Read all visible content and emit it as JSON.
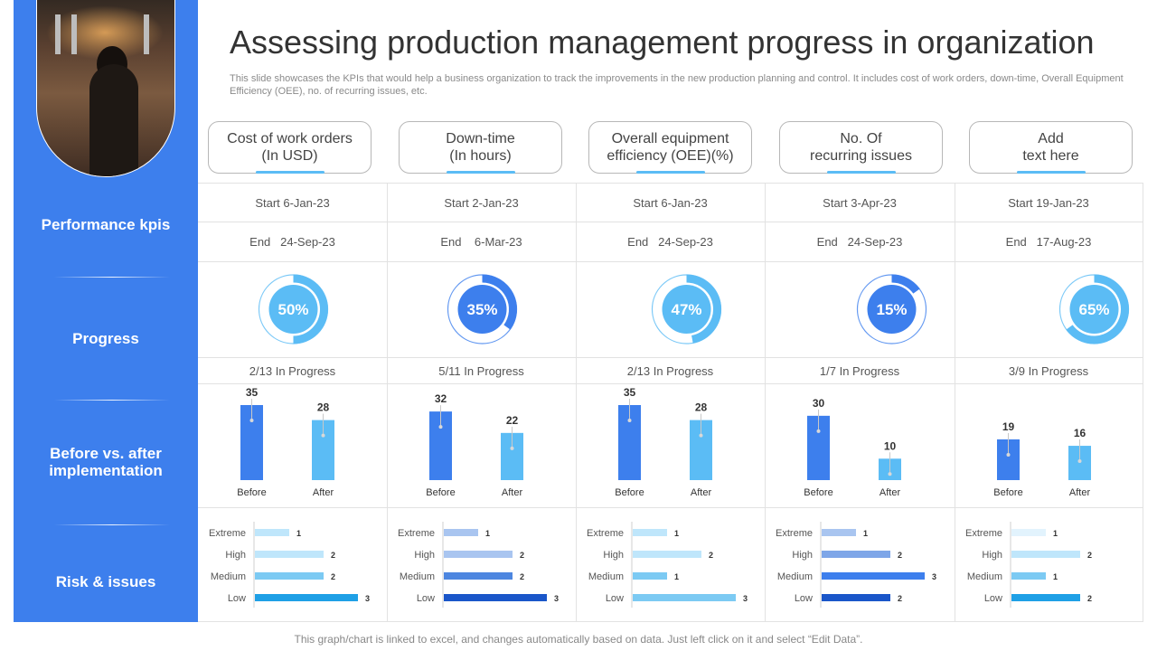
{
  "title": "Assessing production management progress in organization",
  "subtitle": "This slide showcases the KPIs that would help a business organization to track the improvements in the new production planning and control. It includes cost of work orders, down-time, Overall Equipment Efficiency (OEE), no. of recurring issues, etc.",
  "footer": "This graph/chart is linked to excel, and changes automatically based on data. Just left click on it and select “Edit Data”.",
  "sidebar": {
    "performance_label": "Performance kpis",
    "progress_label": "Progress",
    "before_after_label": "Before vs. after implementation",
    "risk_label": "Risk & issues"
  },
  "colors": {
    "accent": "#3d7fed",
    "light_blue": "#5bbcf5",
    "dark_blue": "#1a56c9"
  },
  "columns": [
    {
      "header_line1": "Cost of work orders",
      "header_line2": "(In USD)",
      "start": "Start  6-Jan-23",
      "end": "End   24-Sep-23",
      "progress_label": "50%",
      "progress_text": "2/13 In Progress"
    },
    {
      "header_line1": "Down-time",
      "header_line2": "(In hours)",
      "start": "Start  2-Jan-23",
      "end": "End    6-Mar-23",
      "progress_label": "35%",
      "progress_text": "5/11 In Progress"
    },
    {
      "header_line1": "Overall equipment",
      "header_line2": "efficiency (OEE)(%)",
      "start": "Start  6-Jan-23",
      "end": "End   24-Sep-23",
      "progress_label": "47%",
      "progress_text": "2/13 In Progress"
    },
    {
      "header_line1": "No. Of",
      "header_line2": "recurring issues",
      "start": "Start  3-Apr-23",
      "end": "End   24-Sep-23",
      "progress_label": "15%",
      "progress_text": "1/7 In Progress"
    },
    {
      "header_line1": "Add",
      "header_line2": "text here",
      "start": "Start  19-Jan-23",
      "end": "End   17-Aug-23",
      "progress_label": "65%",
      "progress_text": "3/9 In Progress"
    }
  ],
  "chart_data": [
    {
      "type": "pie",
      "title": "Progress",
      "series": [
        {
          "name": "Cost of work orders",
          "value": 50,
          "center_color": "#5bbcf5",
          "ring_color": "#5bbcf5"
        },
        {
          "name": "Down-time",
          "value": 35,
          "center_color": "#3d7fed",
          "ring_color": "#3d7fed"
        },
        {
          "name": "Overall equipment efficiency",
          "value": 47,
          "center_color": "#5bbcf5",
          "ring_color": "#5bbcf5"
        },
        {
          "name": "No. Of recurring issues",
          "value": 15,
          "center_color": "#3d7fed",
          "ring_color": "#3d7fed"
        },
        {
          "name": "Add text here",
          "value": 65,
          "center_color": "#5bbcf5",
          "ring_color": "#5bbcf5"
        }
      ]
    },
    {
      "type": "bar",
      "title": "Before vs. after implementation",
      "categories": [
        "Before",
        "After"
      ],
      "ylim": [
        0,
        35
      ],
      "series": [
        {
          "name": "Cost of work orders",
          "values": [
            35,
            28
          ]
        },
        {
          "name": "Down-time",
          "values": [
            32,
            22
          ]
        },
        {
          "name": "Overall equipment efficiency",
          "values": [
            35,
            28
          ]
        },
        {
          "name": "No. Of recurring issues",
          "values": [
            30,
            10
          ]
        },
        {
          "name": "Add text here",
          "values": [
            19,
            16
          ]
        }
      ]
    },
    {
      "type": "bar",
      "orientation": "horizontal",
      "title": "Risk & issues",
      "categories": [
        "Extreme",
        "High",
        "Medium",
        "Low"
      ],
      "xlim": [
        0,
        3
      ],
      "series": [
        {
          "name": "Cost of work orders",
          "values": [
            1,
            2,
            2,
            3
          ],
          "colors": [
            "#bfe6fb",
            "#bfe6fb",
            "#7ccaf3",
            "#1fa0e6"
          ]
        },
        {
          "name": "Down-time",
          "values": [
            1,
            2,
            2,
            3
          ],
          "colors": [
            "#a9c5f0",
            "#a9c5f0",
            "#4d86e0",
            "#1a56c9"
          ]
        },
        {
          "name": "Overall equipment efficiency",
          "values": [
            1,
            2,
            1,
            3
          ],
          "colors": [
            "#bfe6fb",
            "#bfe6fb",
            "#7ccaf3",
            "#7ccaf3"
          ]
        },
        {
          "name": "No. Of recurring issues",
          "values": [
            1,
            2,
            3,
            2
          ],
          "colors": [
            "#a9c5f0",
            "#7ea6e8",
            "#3d7fed",
            "#1a56c9"
          ]
        },
        {
          "name": "Add text here",
          "values": [
            1,
            2,
            1,
            2
          ],
          "colors": [
            "#e2f3fd",
            "#bfe6fb",
            "#7ccaf3",
            "#1fa0e6"
          ]
        }
      ]
    }
  ]
}
